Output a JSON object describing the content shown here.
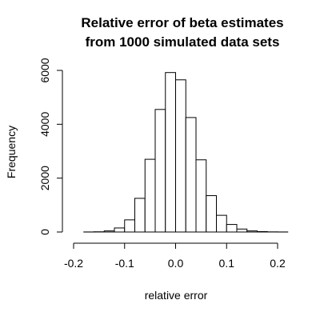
{
  "chart_data": {
    "type": "bar",
    "title_lines": [
      "Relative error of beta estimates",
      "from 1000 simulated data sets"
    ],
    "xlabel": "relative error",
    "ylabel": "Frequency",
    "bin_width": 0.02,
    "bins": [
      {
        "start": -0.18,
        "end": -0.16,
        "count": 2
      },
      {
        "start": -0.16,
        "end": -0.14,
        "count": 8
      },
      {
        "start": -0.14,
        "end": -0.12,
        "count": 40
      },
      {
        "start": -0.12,
        "end": -0.1,
        "count": 150
      },
      {
        "start": -0.1,
        "end": -0.08,
        "count": 450
      },
      {
        "start": -0.08,
        "end": -0.06,
        "count": 1250
      },
      {
        "start": -0.06,
        "end": -0.04,
        "count": 2700
      },
      {
        "start": -0.04,
        "end": -0.02,
        "count": 4550
      },
      {
        "start": -0.02,
        "end": 0.0,
        "count": 5920
      },
      {
        "start": 0.0,
        "end": 0.02,
        "count": 5650
      },
      {
        "start": 0.02,
        "end": 0.04,
        "count": 4250
      },
      {
        "start": 0.04,
        "end": 0.06,
        "count": 2680
      },
      {
        "start": 0.06,
        "end": 0.08,
        "count": 1350
      },
      {
        "start": 0.08,
        "end": 0.1,
        "count": 620
      },
      {
        "start": 0.1,
        "end": 0.12,
        "count": 280
      },
      {
        "start": 0.12,
        "end": 0.14,
        "count": 110
      },
      {
        "start": 0.14,
        "end": 0.16,
        "count": 40
      },
      {
        "start": 0.16,
        "end": 0.18,
        "count": 15
      },
      {
        "start": 0.18,
        "end": 0.2,
        "count": 5
      },
      {
        "start": 0.2,
        "end": 0.22,
        "count": 2
      }
    ],
    "x_ticks": [
      -0.2,
      -0.1,
      0.0,
      0.1,
      0.2
    ],
    "x_tick_labels": [
      "-0.2",
      "-0.1",
      "0.0",
      "0.1",
      "0.2"
    ],
    "y_ticks": [
      0,
      2000,
      4000,
      6000
    ],
    "y_tick_labels": [
      "0",
      "2000",
      "4000",
      "6000"
    ],
    "xlim": [
      -0.2,
      0.22
    ],
    "ylim": [
      0,
      6000
    ],
    "grid": false,
    "legend": "none"
  }
}
